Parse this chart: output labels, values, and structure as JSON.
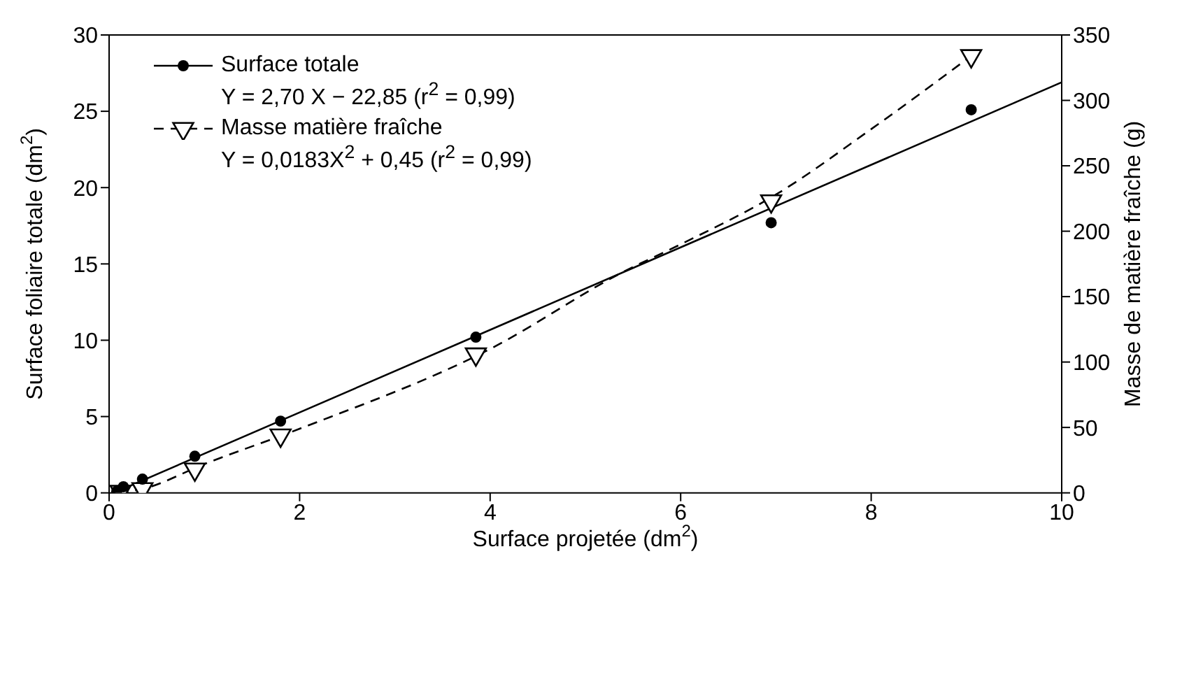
{
  "chart_data": {
    "type": "scatter",
    "xlabel": "Surface projetée (dm$^{2}$)",
    "ylabel": "Surface foliaire totale (dm$^{2}$)",
    "y2label": "Masse de matière fraîche (g)",
    "annotations": [
      "Y = 2,70 X − 22,85  (r$^{2}$ = 0,99)",
      "Y = 0,0183X$^{2}$ + 0,45 (r$^{2}$ = 0,99)"
    ],
    "xlim": [
      0,
      10
    ],
    "xticks": [
      0,
      2,
      4,
      6,
      8,
      10
    ],
    "ylim": [
      0,
      30
    ],
    "yticks": [
      0,
      5,
      10,
      15,
      20,
      25,
      30
    ],
    "y2lim": [
      0,
      350
    ],
    "y2ticks": [
      0,
      50,
      100,
      150,
      200,
      250,
      300,
      350
    ],
    "legend": "top left",
    "series": [
      {
        "name": "Surface totale",
        "color": "#000000",
        "marker": "circle",
        "line_style": "solid",
        "x": [
          0.08,
          0.15,
          0.35,
          0.9,
          1.8,
          3.85,
          6.95,
          9.05
        ],
        "values": [
          0.1,
          0.4,
          0.9,
          2.4,
          4.7,
          10.2,
          17.7,
          25.1
        ]
      },
      {
        "name": "Masse matière fraîche",
        "color": "#000000",
        "marker": "triangle",
        "line_style": "dashed",
        "axis": "y2",
        "x": [
          0.12,
          0.35,
          0.9,
          1.8,
          3.85,
          6.95,
          9.05
        ],
        "values": [
          1,
          3,
          18,
          44,
          106,
          223,
          334
        ]
      },
      {
        "type": "line",
        "color": "#000000",
        "line_style": "solid",
        "x": [
          0.05,
          10
        ],
        "values": [
          0,
          26.9
        ]
      },
      {
        "type": "line",
        "color": "#000000",
        "line_style": "dashed",
        "axis": "y2",
        "x": [
          0.1,
          0.35,
          1,
          2,
          4,
          5.4,
          6,
          7,
          8,
          9.05
        ],
        "values": [
          0,
          3,
          22,
          49,
          110,
          169,
          190,
          228,
          278,
          334
        ]
      }
    ]
  }
}
